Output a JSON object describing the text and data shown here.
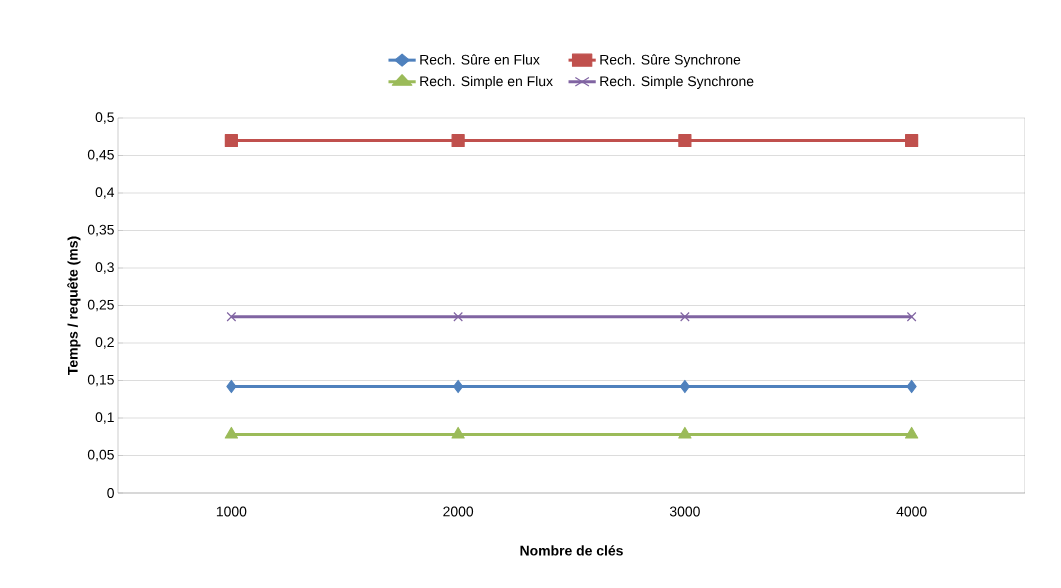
{
  "chart_data": {
    "type": "line",
    "xlabel": "Nombre de clés",
    "ylabel": "Temps / requête (ms)",
    "categories": [
      "1000",
      "2000",
      "3000",
      "4000"
    ],
    "series": [
      {
        "name": "Rech. Sûre en Flux",
        "color": "#4f81bd",
        "marker": "diamond",
        "values": [
          0.142,
          0.142,
          0.142,
          0.142
        ]
      },
      {
        "name": "Rech. Sûre Synchrone",
        "color": "#c0504d",
        "marker": "square",
        "values": [
          0.47,
          0.47,
          0.47,
          0.47
        ]
      },
      {
        "name": "Rech. Simple en Flux",
        "color": "#9bbb59",
        "marker": "triangle",
        "values": [
          0.078,
          0.078,
          0.078,
          0.078
        ]
      },
      {
        "name": "Rech. Simple Synchrone",
        "color": "#8064a2",
        "marker": "cross",
        "values": [
          0.235,
          0.235,
          0.235,
          0.235
        ]
      }
    ],
    "ylim": [
      0,
      0.5
    ],
    "yticks": [
      0,
      {
        "value": 0.05,
        "label": "0,05"
      },
      {
        "value": 0.1,
        "label": "0,1"
      },
      {
        "value": 0.15,
        "label": "0,15"
      },
      {
        "value": 0.2,
        "label": "0,2"
      },
      {
        "value": 0.25,
        "label": "0,25"
      },
      {
        "value": 0.3,
        "label": "0,3"
      },
      {
        "value": 0.35,
        "label": "0,35"
      },
      {
        "value": 0.4,
        "label": "0,4"
      },
      {
        "value": 0.45,
        "label": "0,45"
      },
      {
        "value": 0.5,
        "label": "0,5"
      }
    ],
    "grid": "y",
    "legend": "top",
    "line_style": "solid"
  }
}
